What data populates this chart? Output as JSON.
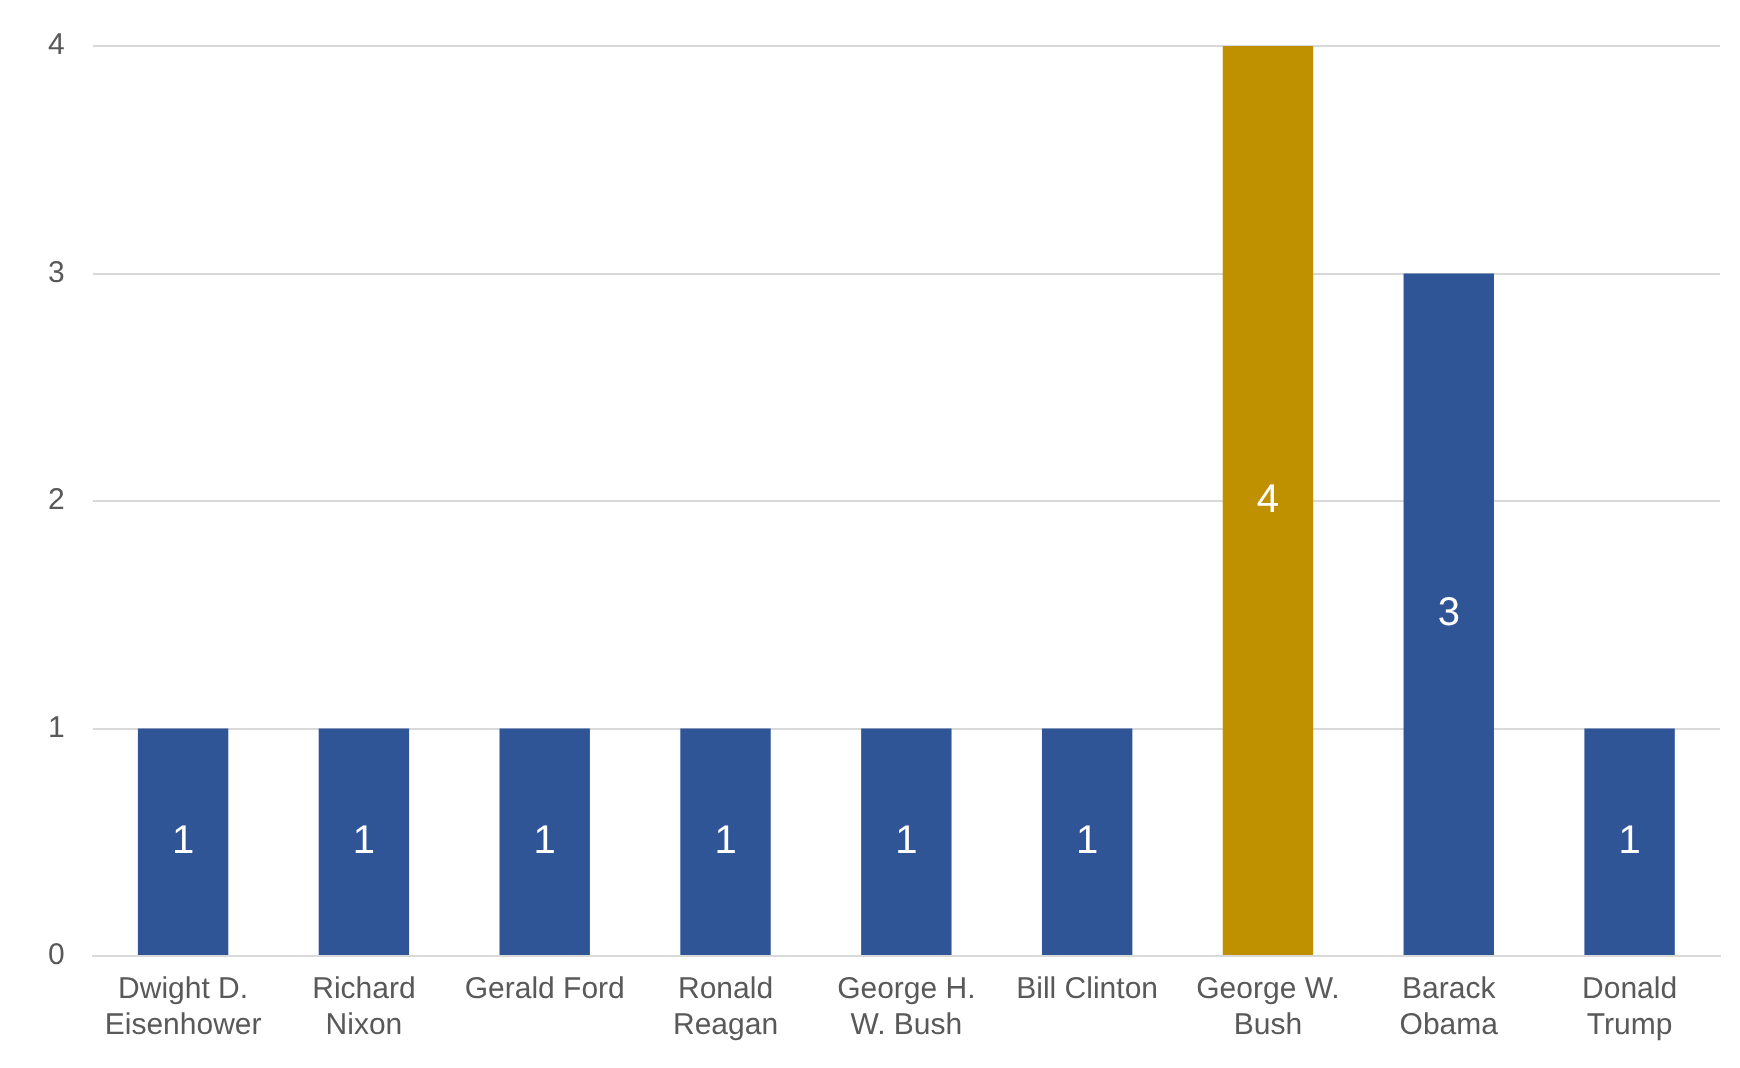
{
  "chart_data": {
    "type": "bar",
    "categories": [
      "Dwight D. Eisenhower",
      "Richard Nixon",
      "Gerald Ford",
      "Ronald Reagan",
      "George H. W. Bush",
      "Bill Clinton",
      "George W. Bush",
      "Barack Obama",
      "Donald Trump"
    ],
    "values": [
      1,
      1,
      1,
      1,
      1,
      1,
      4,
      3,
      1
    ],
    "colors": [
      "#2f5597",
      "#2f5597",
      "#2f5597",
      "#2f5597",
      "#2f5597",
      "#2f5597",
      "#bf9000",
      "#2f5597",
      "#2f5597"
    ],
    "ylim": [
      0,
      4
    ],
    "yticks": [
      0,
      1,
      2,
      3,
      4
    ],
    "grid": "y",
    "data_labels": true,
    "legend": false
  }
}
